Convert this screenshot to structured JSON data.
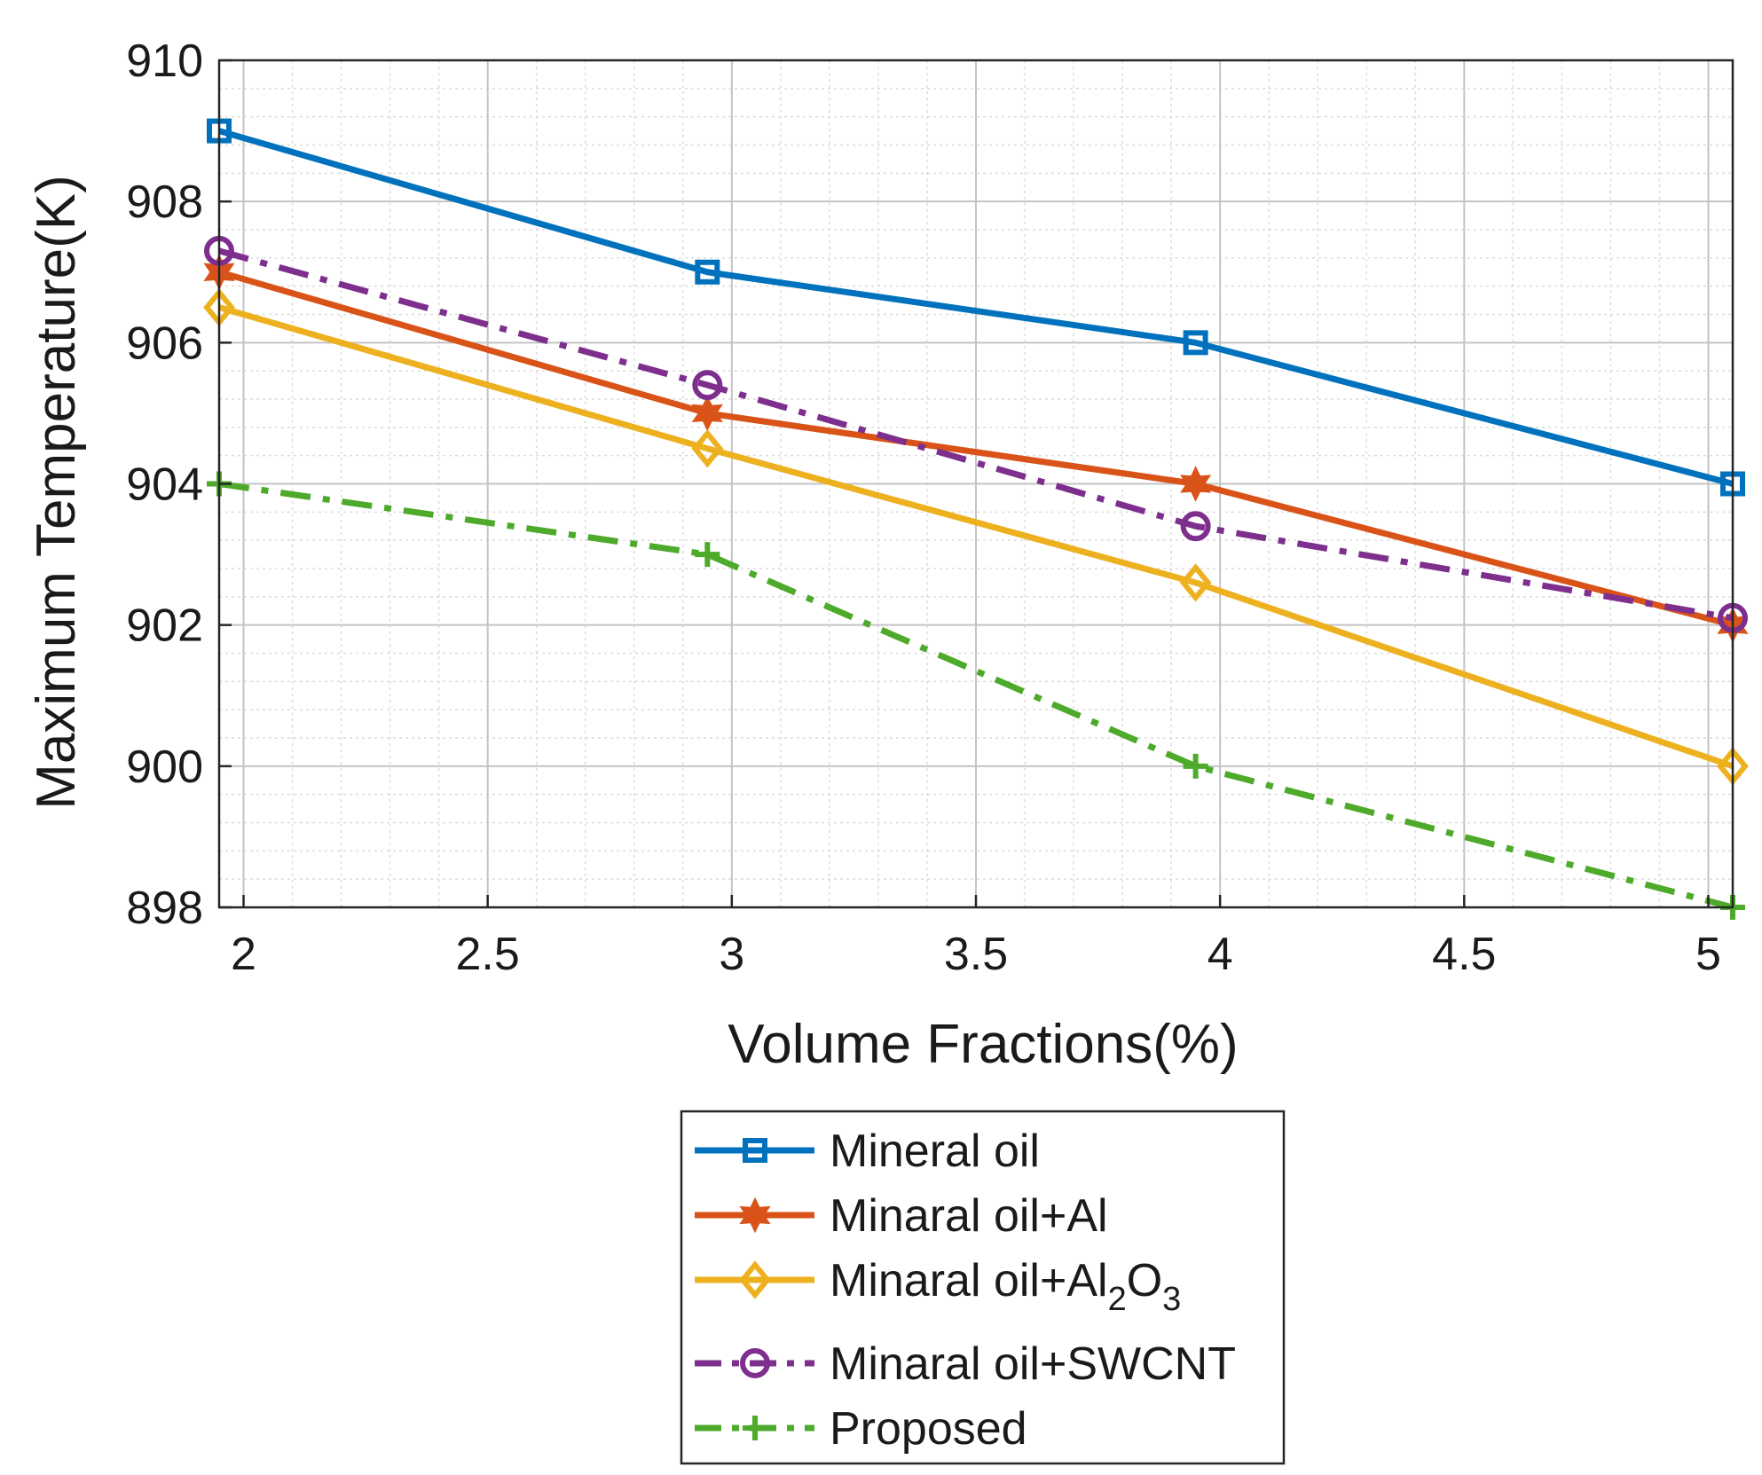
{
  "chart_data": {
    "type": "line",
    "title": "",
    "xlabel": "Volume Fractions(%)",
    "ylabel": "Maximum Temperature(K)",
    "xlim": [
      1.95,
      5.05
    ],
    "ylim": [
      898,
      910
    ],
    "xticks": [
      2,
      2.5,
      3,
      3.5,
      4,
      4.5,
      5
    ],
    "xtick_labels": [
      "2",
      "2.5",
      "3",
      "3.5",
      "4",
      "4.5",
      "5"
    ],
    "yticks": [
      898,
      900,
      902,
      904,
      906,
      908,
      910
    ],
    "ytick_labels": [
      "898",
      "900",
      "902",
      "904",
      "906",
      "908",
      "910"
    ],
    "grid": true,
    "minor_grid": true,
    "legend_position": "bottom-center, below plot",
    "x": [
      1.95,
      2.95,
      3.95,
      5.05
    ],
    "series": [
      {
        "name": "Mineral oil",
        "color": "#0072BD",
        "line_style": "solid",
        "marker": "square",
        "values": [
          909,
          907,
          906,
          904
        ]
      },
      {
        "name": "Minaral oil+Al",
        "color": "#D95319",
        "line_style": "solid",
        "marker": "hexagram",
        "values": [
          907,
          905,
          904,
          902
        ]
      },
      {
        "name": "Minaral oil+Al2O3",
        "label_parts": [
          "Minaral oil+Al",
          "2",
          "O",
          "3"
        ],
        "color": "#EDB120",
        "line_style": "solid",
        "marker": "diamond",
        "values": [
          906.5,
          904.5,
          902.6,
          900
        ]
      },
      {
        "name": "Minaral oil+SWCNT",
        "color": "#7E2F8E",
        "line_style": "dashdot",
        "marker": "circle",
        "values": [
          907.3,
          905.4,
          903.4,
          902.1
        ]
      },
      {
        "name": "Proposed",
        "color": "#4DAA2A",
        "line_style": "dashdot",
        "marker": "plus",
        "values": [
          904,
          903,
          900,
          898
        ]
      }
    ]
  }
}
